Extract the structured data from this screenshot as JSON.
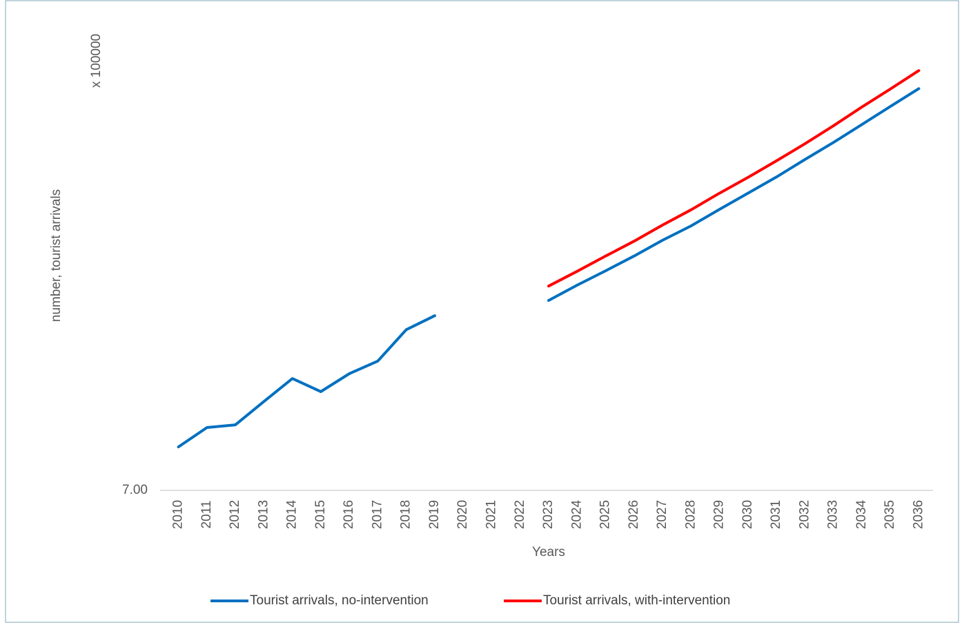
{
  "chart_data": {
    "type": "line",
    "y_axis_label": "number, tourist arrivals",
    "y_unit_label": "x 100000",
    "x_axis_label": "Years",
    "categories": [
      "2010",
      "2011",
      "2012",
      "2013",
      "2014",
      "2015",
      "2016",
      "2017",
      "2018",
      "2019",
      "2020",
      "2021",
      "2022",
      "2023",
      "2024",
      "2025",
      "2026",
      "2027",
      "2028",
      "2029",
      "2030",
      "2031",
      "2032",
      "2033",
      "2034",
      "2035",
      "2036"
    ],
    "series": [
      {
        "name": "Tourist arrivals, no-intervention",
        "color": "#0070c0",
        "values": [
          7.97,
          8.4,
          8.46,
          8.98,
          9.49,
          9.2,
          9.6,
          9.88,
          10.58,
          10.89,
          null,
          null,
          null,
          11.23,
          11.57,
          11.89,
          12.22,
          12.57,
          12.89,
          13.26,
          13.62,
          13.98,
          14.37,
          14.75,
          15.15,
          15.55,
          15.95
        ]
      },
      {
        "name": "Tourist arrivals, with-intervention",
        "color": "#ff0000",
        "values": [
          null,
          null,
          null,
          null,
          null,
          null,
          null,
          null,
          null,
          null,
          null,
          null,
          null,
          11.55,
          11.88,
          12.22,
          12.55,
          12.91,
          13.25,
          13.62,
          13.97,
          14.34,
          14.72,
          15.12,
          15.54,
          15.94,
          16.35
        ]
      }
    ],
    "ylim": [
      7,
      17
    ],
    "yticks": [
      {
        "value": 7,
        "label": "7.00"
      }
    ],
    "legend": "bottom"
  }
}
